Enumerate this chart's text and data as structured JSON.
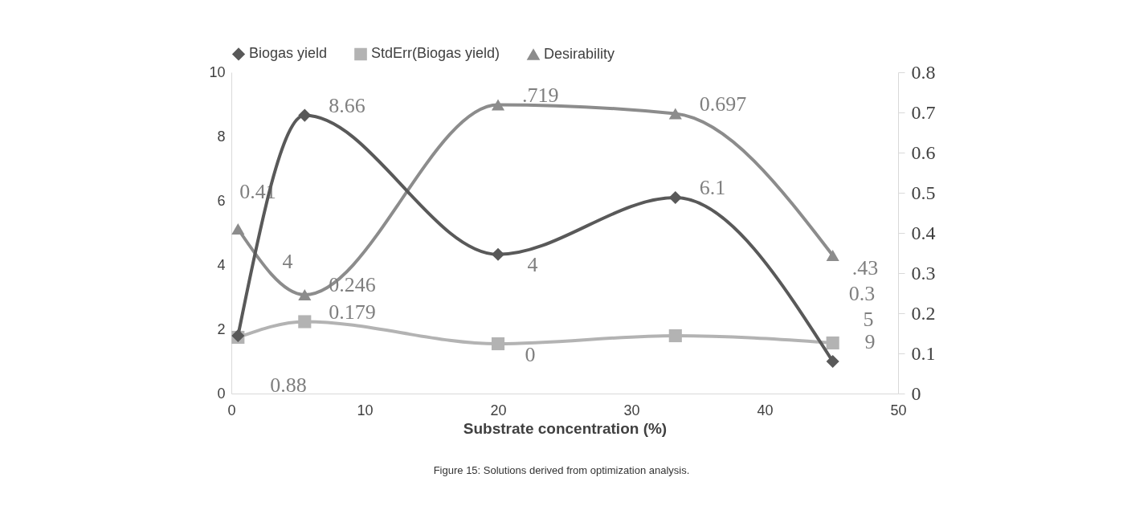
{
  "chart_data": {
    "type": "line",
    "xlabel": "Substrate concentration (%)",
    "x": [
      0.5,
      5.5,
      20,
      33.3,
      45.1
    ],
    "xlim": [
      0,
      50
    ],
    "xticks": [
      0,
      10,
      20,
      30,
      40,
      50
    ],
    "ylim": [
      0,
      10
    ],
    "yticks": [
      0,
      2,
      4,
      6,
      8,
      10
    ],
    "y2lim": [
      0,
      0.8
    ],
    "y2ticks": [
      0,
      0.1,
      0.2,
      0.3,
      0.4,
      0.5,
      0.6,
      0.7,
      0.8
    ],
    "legend": "top",
    "grid": false,
    "line_style": "solid",
    "series": [
      {
        "name": "Biogas yield",
        "color": "#595959",
        "marker": "diamond",
        "values": [
          1.8,
          8.66,
          4.33,
          6.1,
          1.0
        ],
        "value_labels": [
          null,
          "8.66",
          null,
          "6.1",
          null
        ]
      },
      {
        "name": "StdErr(Biogas yield)",
        "color": "#b3b3b3",
        "marker": "square",
        "axis": "y2",
        "values": [
          0.14,
          0.179,
          0.124,
          0.144,
          0.126
        ],
        "value_labels": [
          null,
          "0.179",
          null,
          null,
          null
        ]
      },
      {
        "name": "Desirability",
        "color": "#8c8c8c",
        "marker": "triangle",
        "axis": "y2",
        "values": [
          0.41,
          0.246,
          0.719,
          0.697,
          0.344
        ],
        "value_labels": [
          "0.41",
          "0.246",
          ".719",
          "0.697",
          null
        ]
      }
    ],
    "annotations": [
      "4",
      "4",
      "0",
      "0.88",
      ".43",
      "0.3",
      "5",
      "9",
      "Figure 15: Solutions derived from optimization analysis."
    ]
  }
}
